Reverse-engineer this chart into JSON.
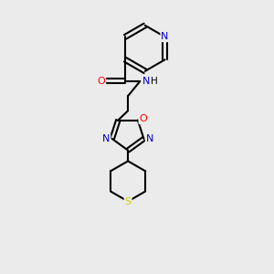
{
  "background_color": "#ebebeb",
  "bond_color": "#000000",
  "atom_colors": {
    "N": "#0000cc",
    "O": "#ff0000",
    "S": "#cccc00",
    "C": "#000000"
  },
  "figsize": [
    3.0,
    3.0
  ],
  "dpi": 100
}
